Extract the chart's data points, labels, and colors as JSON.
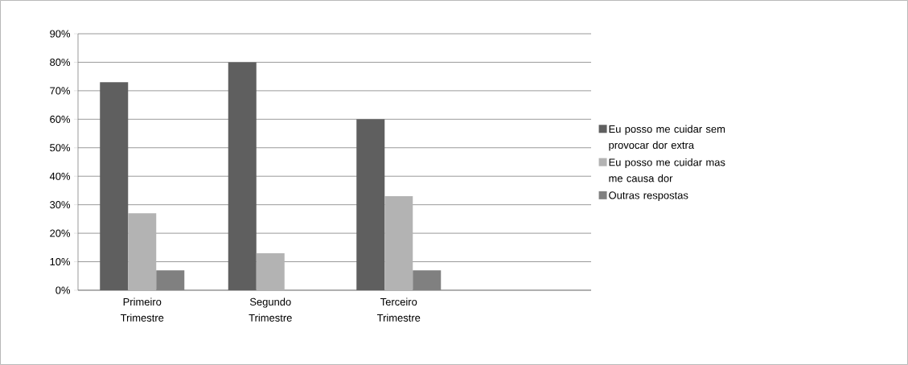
{
  "chart_data": {
    "type": "bar",
    "categories": [
      "Primeiro Trimestre",
      "Segundo Trimestre",
      "Terceiro Trimestre",
      null
    ],
    "series": [
      {
        "name": "Eu posso me cuidar sem provocar dor extra",
        "color": "#5f5f5f",
        "values": [
          73,
          80,
          60,
          null
        ]
      },
      {
        "name": "Eu posso me cuidar mas me causa dor",
        "color": "#b3b3b3",
        "values": [
          27,
          13,
          33,
          null
        ]
      },
      {
        "name": "Outras respostas",
        "color": "#808080",
        "values": [
          7,
          null,
          7,
          null
        ]
      }
    ],
    "ylim": [
      0,
      90
    ],
    "yticks": [
      {
        "value": 0,
        "label": "0%"
      },
      {
        "value": 10,
        "label": "10%"
      },
      {
        "value": 20,
        "label": "20%"
      },
      {
        "value": 30,
        "label": "30%"
      },
      {
        "value": 40,
        "label": "40%"
      },
      {
        "value": 50,
        "label": "50%"
      },
      {
        "value": 60,
        "label": "60%"
      },
      {
        "value": 70,
        "label": "70%"
      },
      {
        "value": 80,
        "label": "80%"
      },
      {
        "value": 90,
        "label": "90%"
      }
    ],
    "grid": "y",
    "legend": "right"
  }
}
